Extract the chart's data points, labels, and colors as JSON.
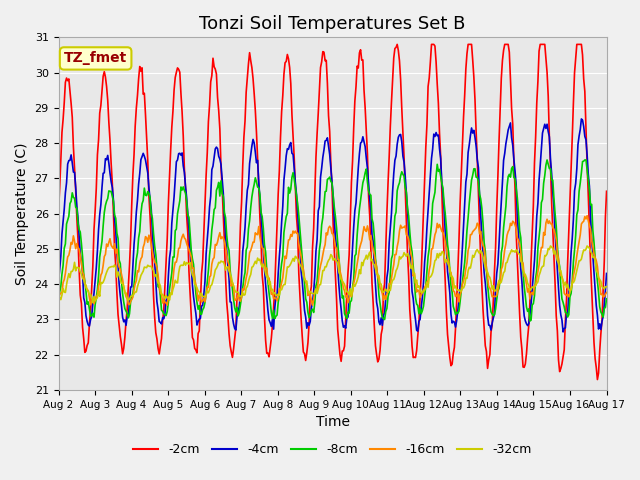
{
  "title": "Tonzi Soil Temperatures Set B",
  "xlabel": "Time",
  "ylabel": "Soil Temperature (C)",
  "ylim": [
    21.0,
    31.0
  ],
  "yticks": [
    21.0,
    22.0,
    23.0,
    24.0,
    25.0,
    26.0,
    27.0,
    28.0,
    29.0,
    30.0,
    31.0
  ],
  "xtick_labels": [
    "Aug 2",
    "Aug 3",
    "Aug 4",
    "Aug 5",
    "Aug 6",
    "Aug 7",
    "Aug 8",
    "Aug 9",
    "Aug 10",
    "Aug 11",
    "Aug 12",
    "Aug 13",
    "Aug 14",
    "Aug 15",
    "Aug 16",
    "Aug 17"
  ],
  "series_colors": [
    "#ff0000",
    "#0000cc",
    "#00cc00",
    "#ff8800",
    "#cccc00"
  ],
  "series_labels": [
    "-2cm",
    "-4cm",
    "-8cm",
    "-16cm",
    "-32cm"
  ],
  "annotation_text": "TZ_fmet",
  "annotation_bg": "#ffffcc",
  "annotation_border": "#cccc00",
  "annotation_text_color": "#990000",
  "background_color": "#e8e8e8",
  "n_points": 480,
  "days": 15
}
